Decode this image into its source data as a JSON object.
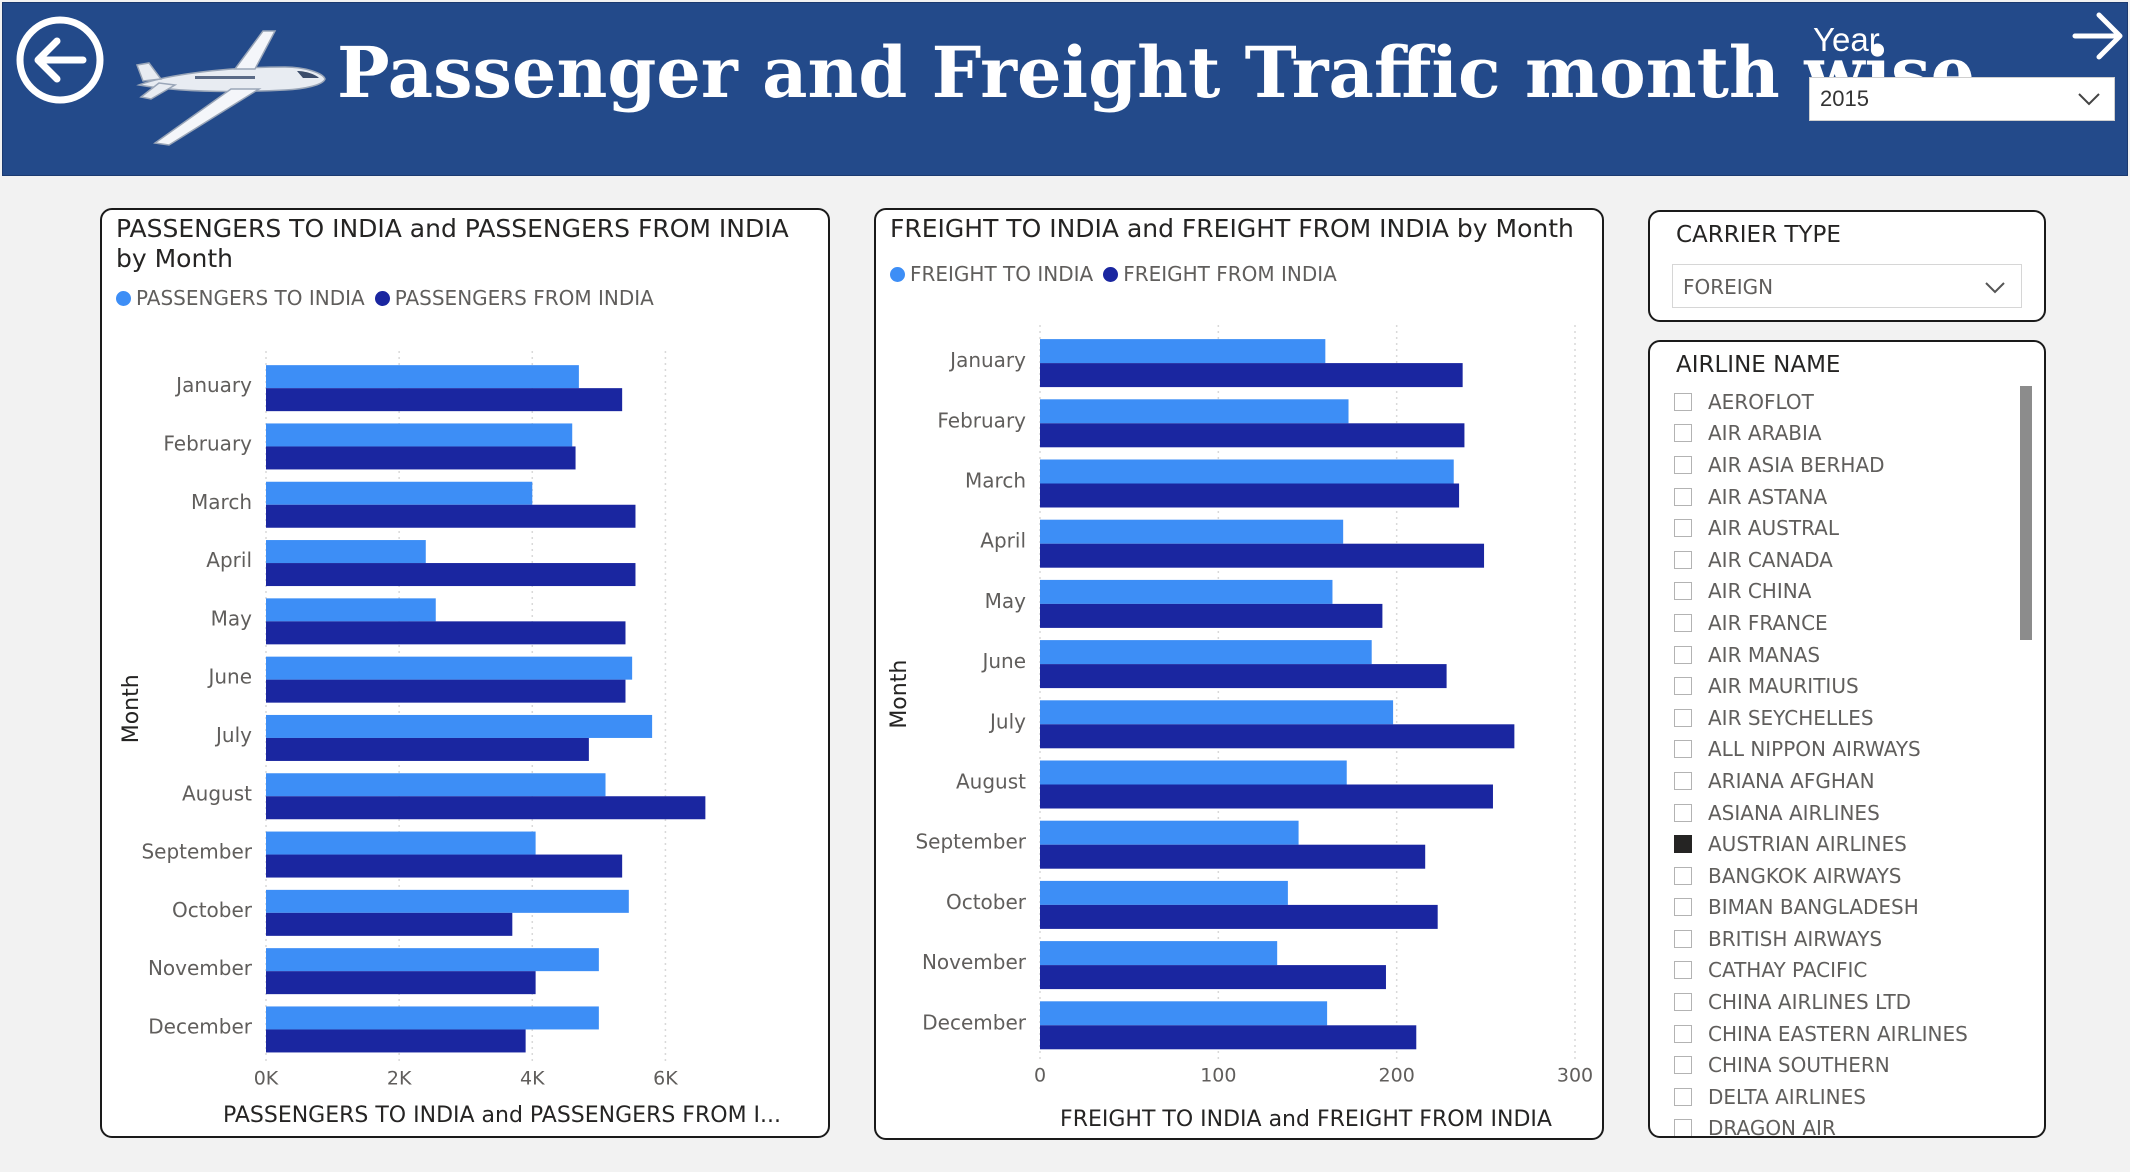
{
  "header": {
    "title": "Passenger and Freight Traffic  month wise",
    "year_label": "Year",
    "year_value": "2015",
    "back_icon": "arrow-left-circle-icon",
    "forward_icon": "arrow-right-icon",
    "logo_icon": "airplane-icon"
  },
  "colors": {
    "header_bg": "#234a8a",
    "series_light": "#3d8ef6",
    "series_dark": "#1a26a0",
    "panel_border": "#1a1a1a"
  },
  "passengers": {
    "title": "PASSENGERS TO INDIA and PASSENGERS FROM INDIA by Month",
    "legend": [
      "PASSENGERS TO INDIA",
      "PASSENGERS FROM INDIA"
    ],
    "xlabel": "PASSENGERS TO INDIA and PASSENGERS FROM I...",
    "ylabel": "Month"
  },
  "freight": {
    "title": "FREIGHT TO INDIA and FREIGHT FROM INDIA by Month",
    "legend": [
      "FREIGHT TO INDIA",
      "FREIGHT FROM INDIA"
    ],
    "xlabel": "FREIGHT TO INDIA and FREIGHT FROM INDIA",
    "ylabel": "Month"
  },
  "chart_data": [
    {
      "type": "bar",
      "orientation": "horizontal",
      "title": "PASSENGERS TO INDIA and PASSENGERS FROM INDIA by Month",
      "categories": [
        "January",
        "February",
        "March",
        "April",
        "May",
        "June",
        "July",
        "August",
        "September",
        "October",
        "November",
        "December"
      ],
      "series": [
        {
          "name": "PASSENGERS TO INDIA",
          "values": [
            4700,
            4600,
            4000,
            2400,
            2550,
            5500,
            5800,
            5100,
            4050,
            5450,
            5000,
            5000
          ]
        },
        {
          "name": "PASSENGERS FROM INDIA",
          "values": [
            5350,
            4650,
            5550,
            5550,
            5400,
            5400,
            4850,
            6600,
            5350,
            3700,
            4050,
            3900
          ]
        }
      ],
      "xticks": [
        "0K",
        "2K",
        "4K",
        "6K"
      ],
      "xlim": [
        0,
        7000
      ],
      "xlabel": "PASSENGERS TO INDIA and PASSENGERS FROM I...",
      "ylabel": "Month",
      "legend_position": "top-left",
      "grid": true
    },
    {
      "type": "bar",
      "orientation": "horizontal",
      "title": "FREIGHT TO INDIA and FREIGHT FROM INDIA by Month",
      "categories": [
        "January",
        "February",
        "March",
        "April",
        "May",
        "June",
        "July",
        "August",
        "September",
        "October",
        "November",
        "December"
      ],
      "series": [
        {
          "name": "FREIGHT TO INDIA",
          "values": [
            160,
            173,
            232,
            170,
            164,
            186,
            198,
            172,
            145,
            139,
            133,
            161
          ]
        },
        {
          "name": "FREIGHT FROM INDIA",
          "values": [
            237,
            238,
            235,
            249,
            192,
            228,
            266,
            254,
            216,
            223,
            194,
            211
          ]
        }
      ],
      "xticks": [
        "0",
        "100",
        "200",
        "300"
      ],
      "xlim": [
        0,
        300
      ],
      "xlabel": "FREIGHT TO INDIA and FREIGHT FROM INDIA",
      "ylabel": "Month",
      "legend_position": "top-left",
      "grid": true
    }
  ],
  "carrier_type": {
    "title": "CARRIER TYPE",
    "value": "FOREIGN",
    "chevron_icon": "chevron-down-icon"
  },
  "airline": {
    "title": "AIRLINE NAME",
    "items": [
      {
        "name": "AEROFLOT",
        "checked": false
      },
      {
        "name": "AIR ARABIA",
        "checked": false
      },
      {
        "name": "AIR ASIA BERHAD",
        "checked": false
      },
      {
        "name": "AIR ASTANA",
        "checked": false
      },
      {
        "name": "AIR AUSTRAL",
        "checked": false
      },
      {
        "name": "AIR CANADA",
        "checked": false
      },
      {
        "name": "AIR CHINA",
        "checked": false
      },
      {
        "name": "AIR FRANCE",
        "checked": false
      },
      {
        "name": "AIR MANAS",
        "checked": false
      },
      {
        "name": "AIR MAURITIUS",
        "checked": false
      },
      {
        "name": "AIR SEYCHELLES",
        "checked": false
      },
      {
        "name": "ALL NIPPON AIRWAYS",
        "checked": false
      },
      {
        "name": "ARIANA AFGHAN",
        "checked": false
      },
      {
        "name": "ASIANA AIRLINES",
        "checked": false
      },
      {
        "name": "AUSTRIAN AIRLINES",
        "checked": true
      },
      {
        "name": "BANGKOK AIRWAYS",
        "checked": false
      },
      {
        "name": "BIMAN BANGLADESH",
        "checked": false
      },
      {
        "name": "BRITISH AIRWAYS",
        "checked": false
      },
      {
        "name": "CATHAY PACIFIC",
        "checked": false
      },
      {
        "name": "CHINA AIRLINES LTD",
        "checked": false
      },
      {
        "name": "CHINA EASTERN AIRLINES",
        "checked": false
      },
      {
        "name": "CHINA SOUTHERN",
        "checked": false
      },
      {
        "name": "DELTA AIRLINES",
        "checked": false
      },
      {
        "name": "DRAGON AIR",
        "checked": false
      }
    ]
  }
}
